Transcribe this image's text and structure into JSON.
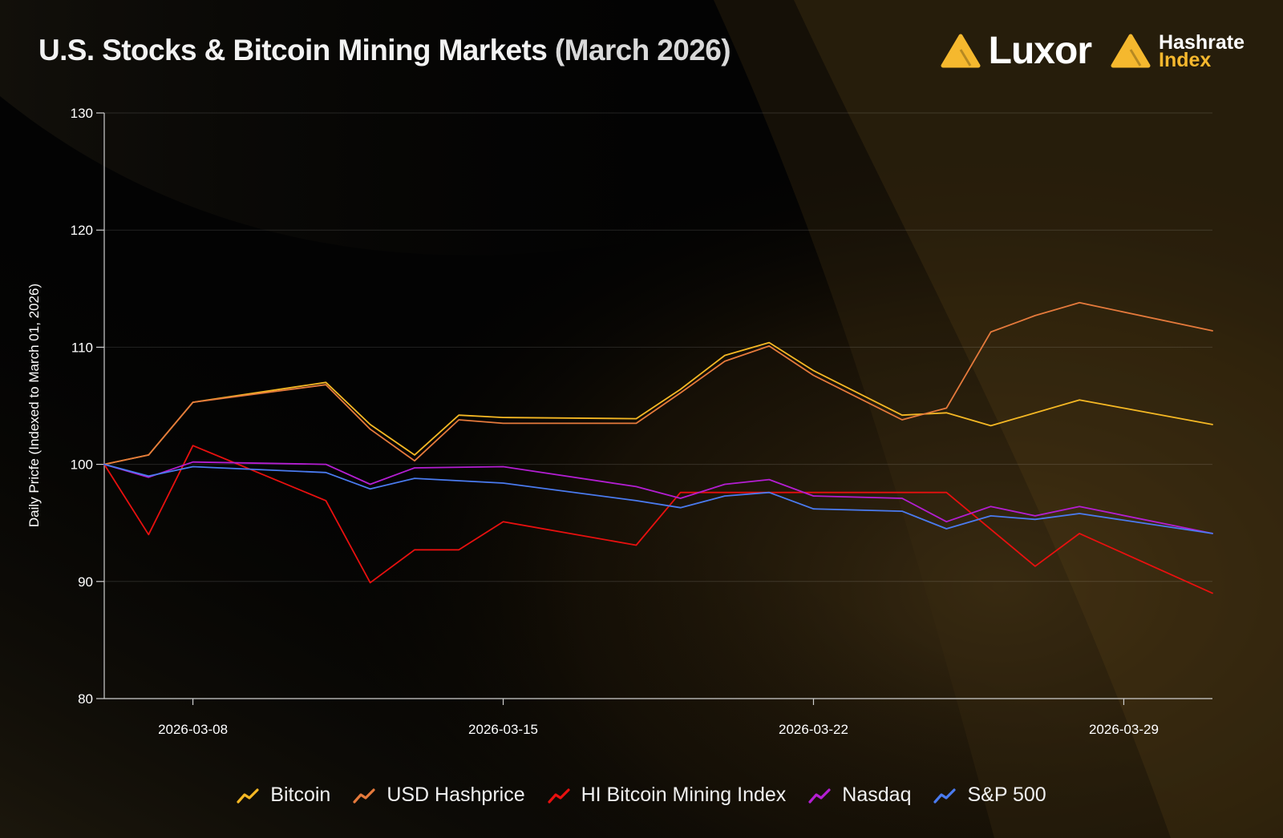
{
  "header": {
    "title_main": "U.S. Stocks & Bitcoin Mining Markets",
    "title_paren": "(March 2026)"
  },
  "logos": {
    "luxor": "Luxor",
    "hashrate_line1": "Hashrate",
    "hashrate_line2": "Index"
  },
  "colors": {
    "brand_yellow": "#f5b82e"
  },
  "chart_data": {
    "type": "line",
    "title": "U.S. Stocks & Bitcoin Mining Markets (March 2026)",
    "ylabel": "Daily Pricfe (Indexed to March 01, 2026)",
    "xlabel": "",
    "ylim": [
      80,
      130
    ],
    "yticks": [
      80,
      90,
      100,
      110,
      120,
      130
    ],
    "xlim": [
      "2026-03-06",
      "2026-03-31"
    ],
    "xticks": [
      "2026-03-08",
      "2026-03-15",
      "2026-03-22",
      "2026-03-29"
    ],
    "grid": true,
    "legend_position": "bottom",
    "series": [
      {
        "name": "Bitcoin",
        "color": "#f5b824",
        "points": [
          [
            "2026-03-06",
            100.0
          ],
          [
            "2026-03-07",
            100.8
          ],
          [
            "2026-03-08",
            105.3
          ],
          [
            "2026-03-11",
            107.0
          ],
          [
            "2026-03-12",
            103.4
          ],
          [
            "2026-03-13",
            100.8
          ],
          [
            "2026-03-14",
            104.2
          ],
          [
            "2026-03-15",
            104.0
          ],
          [
            "2026-03-18",
            103.9
          ],
          [
            "2026-03-19",
            106.4
          ],
          [
            "2026-03-20",
            109.3
          ],
          [
            "2026-03-21",
            110.4
          ],
          [
            "2026-03-22",
            108.0
          ],
          [
            "2026-03-24",
            104.2
          ],
          [
            "2026-03-25",
            104.4
          ],
          [
            "2026-03-26",
            103.3
          ],
          [
            "2026-03-28",
            105.5
          ],
          [
            "2026-03-31",
            103.4
          ]
        ]
      },
      {
        "name": "USD Hashprice",
        "color": "#e57a3c",
        "points": [
          [
            "2026-03-06",
            100.0
          ],
          [
            "2026-03-07",
            100.8
          ],
          [
            "2026-03-08",
            105.3
          ],
          [
            "2026-03-11",
            106.8
          ],
          [
            "2026-03-12",
            103.0
          ],
          [
            "2026-03-13",
            100.3
          ],
          [
            "2026-03-14",
            103.8
          ],
          [
            "2026-03-15",
            103.5
          ],
          [
            "2026-03-18",
            103.5
          ],
          [
            "2026-03-19",
            106.1
          ],
          [
            "2026-03-20",
            108.8
          ],
          [
            "2026-03-21",
            110.1
          ],
          [
            "2026-03-22",
            107.6
          ],
          [
            "2026-03-24",
            103.8
          ],
          [
            "2026-03-25",
            104.8
          ],
          [
            "2026-03-26",
            111.3
          ],
          [
            "2026-03-27",
            112.7
          ],
          [
            "2026-03-28",
            113.8
          ],
          [
            "2026-03-31",
            111.4
          ]
        ]
      },
      {
        "name": "HI Bitcoin Mining Index",
        "color": "#e8100f",
        "points": [
          [
            "2026-03-06",
            100.0
          ],
          [
            "2026-03-07",
            94.0
          ],
          [
            "2026-03-08",
            101.6
          ],
          [
            "2026-03-11",
            96.9
          ],
          [
            "2026-03-12",
            89.9
          ],
          [
            "2026-03-13",
            92.7
          ],
          [
            "2026-03-14",
            92.7
          ],
          [
            "2026-03-15",
            95.1
          ],
          [
            "2026-03-18",
            93.1
          ],
          [
            "2026-03-19",
            97.6
          ],
          [
            "2026-03-25",
            97.6
          ],
          [
            "2026-03-27",
            91.3
          ],
          [
            "2026-03-28",
            94.1
          ],
          [
            "2026-03-31",
            89.0
          ]
        ]
      },
      {
        "name": "Nasdaq",
        "color": "#b41ed2",
        "points": [
          [
            "2026-03-06",
            100.0
          ],
          [
            "2026-03-07",
            98.9
          ],
          [
            "2026-03-08",
            100.2
          ],
          [
            "2026-03-11",
            100.0
          ],
          [
            "2026-03-12",
            98.3
          ],
          [
            "2026-03-13",
            99.7
          ],
          [
            "2026-03-15",
            99.8
          ],
          [
            "2026-03-18",
            98.1
          ],
          [
            "2026-03-19",
            97.1
          ],
          [
            "2026-03-20",
            98.3
          ],
          [
            "2026-03-21",
            98.7
          ],
          [
            "2026-03-22",
            97.3
          ],
          [
            "2026-03-24",
            97.1
          ],
          [
            "2026-03-25",
            95.1
          ],
          [
            "2026-03-26",
            96.4
          ],
          [
            "2026-03-27",
            95.6
          ],
          [
            "2026-03-28",
            96.4
          ],
          [
            "2026-03-31",
            94.1
          ]
        ]
      },
      {
        "name": "S&P 500",
        "color": "#4a7bf0",
        "points": [
          [
            "2026-03-06",
            100.0
          ],
          [
            "2026-03-07",
            99.0
          ],
          [
            "2026-03-08",
            99.8
          ],
          [
            "2026-03-11",
            99.3
          ],
          [
            "2026-03-12",
            97.9
          ],
          [
            "2026-03-13",
            98.8
          ],
          [
            "2026-03-15",
            98.4
          ],
          [
            "2026-03-18",
            96.9
          ],
          [
            "2026-03-19",
            96.3
          ],
          [
            "2026-03-20",
            97.3
          ],
          [
            "2026-03-21",
            97.6
          ],
          [
            "2026-03-22",
            96.2
          ],
          [
            "2026-03-24",
            96.0
          ],
          [
            "2026-03-25",
            94.5
          ],
          [
            "2026-03-26",
            95.6
          ],
          [
            "2026-03-27",
            95.3
          ],
          [
            "2026-03-28",
            95.8
          ],
          [
            "2026-03-31",
            94.1
          ]
        ]
      }
    ]
  }
}
